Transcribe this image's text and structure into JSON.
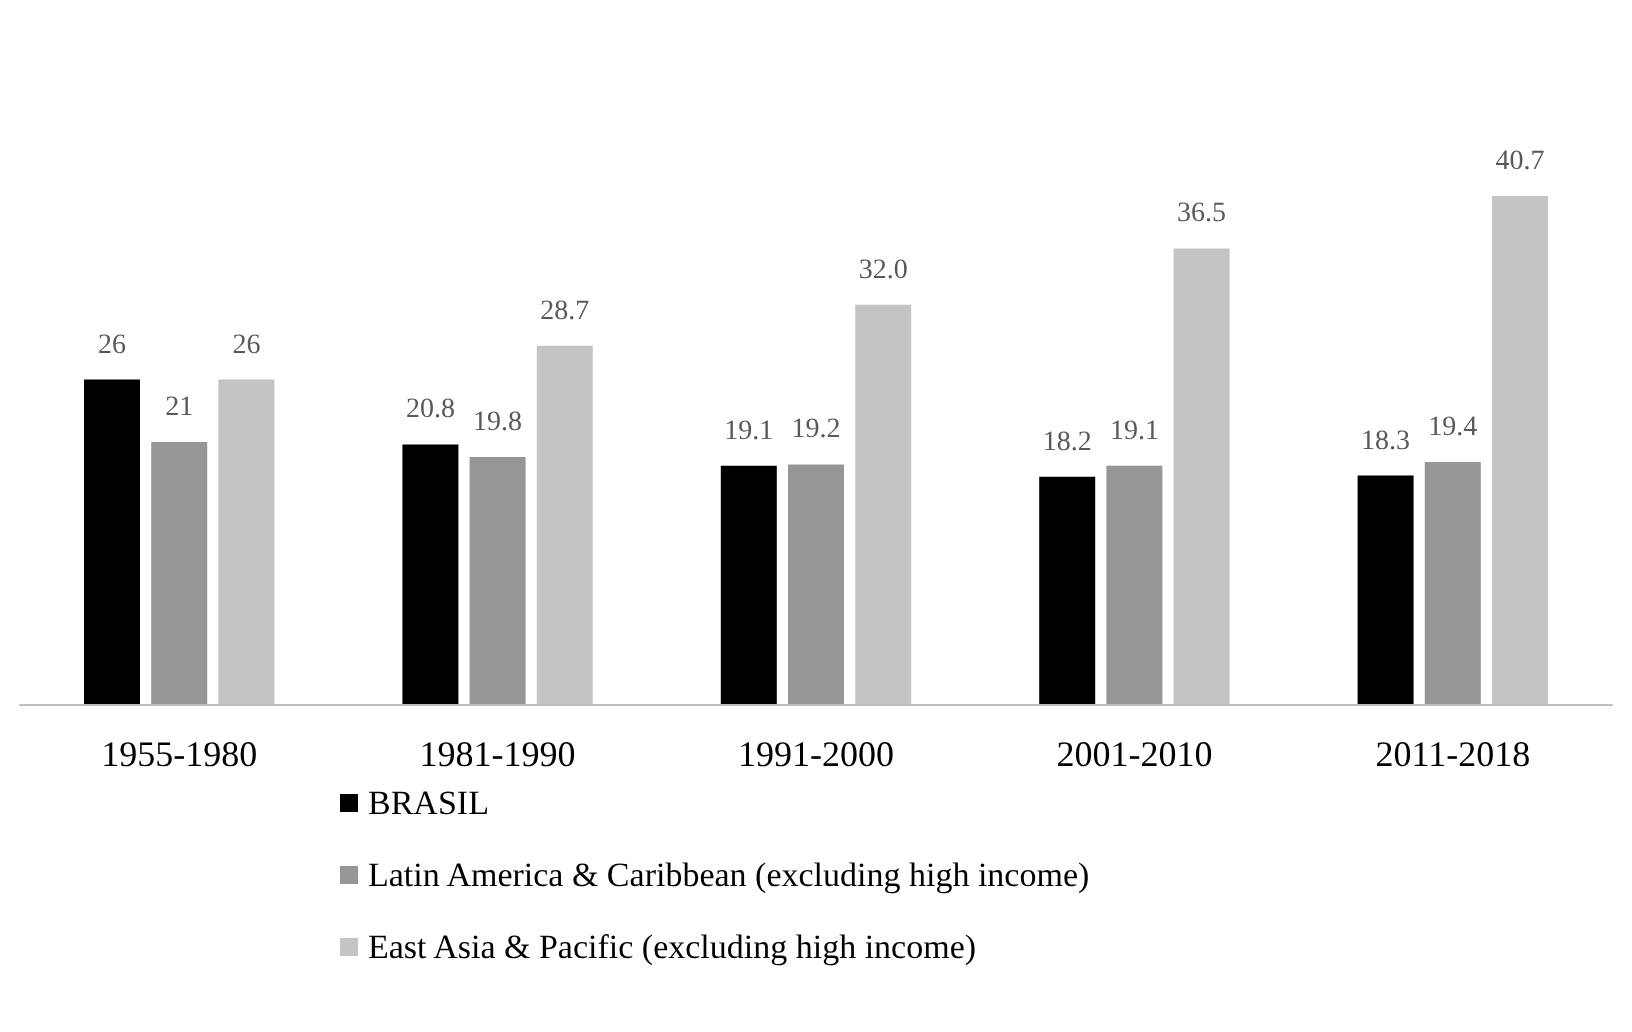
{
  "chart_data": {
    "type": "bar",
    "categories": [
      "1955-1980",
      "1981-1990",
      "1991-2000",
      "2001-2010",
      "2011-2018"
    ],
    "series": [
      {
        "name": "BRASIL",
        "color": "#000000",
        "values": [
          26,
          20.8,
          19.1,
          18.2,
          18.3
        ],
        "value_labels": [
          "26",
          "20.8",
          "19.1",
          "18.2",
          "18.3"
        ]
      },
      {
        "name": "Latin America & Caribbean (excluding high income)",
        "color": "#969696",
        "values": [
          21,
          19.8,
          19.2,
          19.1,
          19.4
        ],
        "value_labels": [
          "21",
          "19.8",
          "19.2",
          "19.1",
          "19.4"
        ]
      },
      {
        "name": "East Asia & Pacific (excluding high income)",
        "color": "#c4c4c4",
        "values": [
          26,
          28.7,
          32.0,
          36.5,
          40.7
        ],
        "value_labels": [
          "26",
          "28.7",
          "32.0",
          "36.5",
          "40.7"
        ]
      }
    ],
    "legend": "bottom"
  }
}
